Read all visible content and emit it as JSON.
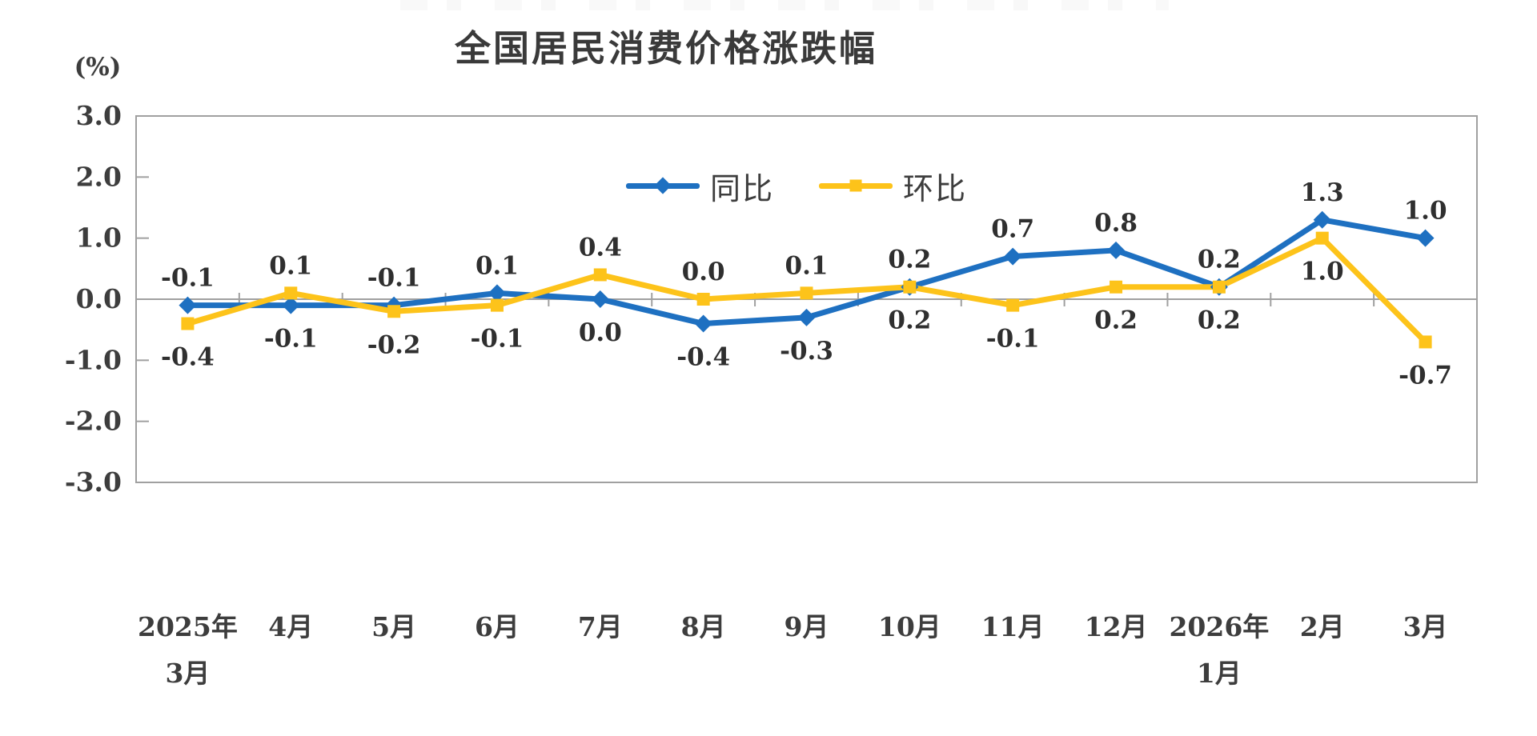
{
  "chart_data": {
    "type": "line",
    "title": "全国居民消费价格涨跌幅",
    "y_axis_unit": "(%)",
    "ylim": [
      -3.0,
      3.0
    ],
    "ytick_step": 1.0,
    "ytick_labels": [
      "3.0",
      "2.0",
      "1.0",
      "0.0",
      "-1.0",
      "-2.0",
      "-3.0"
    ],
    "grid": "zero-baseline-only",
    "legend_position": "top-center-inside",
    "axis_color": "#a0a0a0",
    "text_color": "#3d3d3d",
    "categories": [
      [
        "2025年",
        "3月"
      ],
      [
        "4月"
      ],
      [
        "5月"
      ],
      [
        "6月"
      ],
      [
        "7月"
      ],
      [
        "8月"
      ],
      [
        "9月"
      ],
      [
        "10月"
      ],
      [
        "11月"
      ],
      [
        "12月"
      ],
      [
        "2026年",
        "1月"
      ],
      [
        "2月"
      ],
      [
        "3月"
      ]
    ],
    "series": [
      {
        "name": "同比",
        "color": "#1e70c1",
        "marker": "diamond",
        "values": [
          -0.1,
          -0.1,
          -0.1,
          0.1,
          0.0,
          -0.4,
          -0.3,
          0.2,
          0.7,
          0.8,
          0.2,
          1.3,
          1.0
        ],
        "label_position": [
          "above",
          "below",
          "above",
          "above",
          "below",
          "below",
          "below",
          "above",
          "above",
          "above",
          "above",
          "above",
          "above"
        ]
      },
      {
        "name": "环比",
        "color": "#fdc31a",
        "marker": "square",
        "values": [
          -0.4,
          0.1,
          -0.2,
          -0.1,
          0.4,
          0.0,
          0.1,
          0.2,
          -0.1,
          0.2,
          0.2,
          1.0,
          -0.7
        ],
        "label_position": [
          "below",
          "above",
          "below",
          "below",
          "above",
          "above",
          "above",
          "below",
          "below",
          "below",
          "below",
          "below",
          "below"
        ]
      }
    ]
  }
}
